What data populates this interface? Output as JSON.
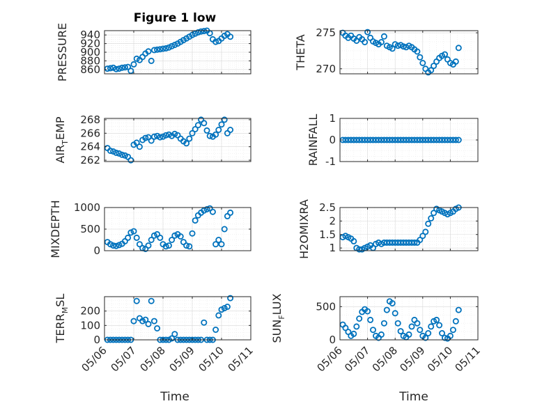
{
  "figure": {
    "title": "Figure 1 low",
    "marker_color": "#0072BD",
    "xlabel": "Time",
    "x_tick_labels": [
      "05/06",
      "05/07",
      "05/08",
      "05/09",
      "05/10",
      "05/11"
    ]
  },
  "chart_data": [
    {
      "type": "scatter",
      "name": "pressure",
      "ylabel": "PRESSURE",
      "title": "Figure 1 low",
      "xlim": [
        0,
        5
      ],
      "ylim": [
        850,
        950
      ],
      "yticks": [
        860,
        880,
        900,
        920,
        940
      ],
      "ytick_labels": [
        "860",
        "880",
        "900",
        "920",
        "940"
      ],
      "x": [
        0.1,
        0.2,
        0.3,
        0.4,
        0.5,
        0.6,
        0.7,
        0.8,
        0.9,
        1.0,
        1.1,
        1.2,
        1.3,
        1.4,
        1.5,
        1.6,
        1.7,
        1.8,
        1.9,
        2.0,
        2.1,
        2.2,
        2.3,
        2.4,
        2.5,
        2.6,
        2.7,
        2.8,
        2.9,
        3.0,
        3.1,
        3.2,
        3.3,
        3.4,
        3.5,
        3.6,
        3.7,
        3.8,
        3.9,
        4.0,
        4.1,
        4.2,
        4.3
      ],
      "y": [
        862,
        863,
        864,
        861,
        862,
        864,
        865,
        866,
        857,
        872,
        885,
        882,
        889,
        897,
        902,
        880,
        905,
        906,
        907,
        908,
        909,
        911,
        914,
        917,
        920,
        924,
        928,
        932,
        936,
        940,
        943,
        946,
        948,
        949,
        950,
        944,
        930,
        924,
        926,
        932,
        938,
        942,
        936
      ]
    },
    {
      "type": "scatter",
      "name": "theta",
      "ylabel": "THETA",
      "xlim": [
        0,
        5
      ],
      "ylim": [
        269.3,
        275.3
      ],
      "yticks": [
        270,
        275
      ],
      "ytick_labels": [
        "270",
        "275"
      ],
      "x": [
        0.1,
        0.2,
        0.3,
        0.4,
        0.5,
        0.6,
        0.7,
        0.8,
        0.9,
        1.0,
        1.1,
        1.2,
        1.3,
        1.4,
        1.5,
        1.6,
        1.7,
        1.8,
        1.9,
        2.0,
        2.1,
        2.2,
        2.3,
        2.4,
        2.5,
        2.6,
        2.7,
        2.8,
        2.9,
        3.0,
        3.1,
        3.2,
        3.3,
        3.4,
        3.5,
        3.6,
        3.7,
        3.8,
        3.9,
        4.0,
        4.1,
        4.2,
        4.3
      ],
      "y": [
        275.0,
        274.6,
        274.3,
        274.6,
        274.2,
        273.9,
        274.4,
        274.1,
        273.7,
        275.1,
        274.3,
        273.8,
        273.6,
        273.4,
        273.7,
        274.5,
        273.2,
        273.0,
        272.8,
        273.4,
        273.2,
        273.3,
        273.1,
        273.0,
        273.2,
        273.0,
        272.7,
        272.4,
        271.6,
        270.8,
        270.0,
        269.5,
        269.8,
        270.4,
        271.0,
        271.5,
        271.8,
        272.0,
        271.3,
        270.8,
        270.6,
        271.0,
        272.9
      ]
    },
    {
      "type": "scatter",
      "name": "air-temp",
      "ylabel": "AIR_TEMP",
      "xlim": [
        0,
        5
      ],
      "ylim": [
        261.8,
        268.2
      ],
      "yticks": [
        262,
        264,
        266,
        268
      ],
      "ytick_labels": [
        "262",
        "264",
        "266",
        "268"
      ],
      "x": [
        0.1,
        0.2,
        0.3,
        0.4,
        0.5,
        0.6,
        0.7,
        0.8,
        0.9,
        1.0,
        1.1,
        1.2,
        1.3,
        1.4,
        1.5,
        1.6,
        1.7,
        1.8,
        1.9,
        2.0,
        2.1,
        2.2,
        2.3,
        2.4,
        2.5,
        2.6,
        2.7,
        2.8,
        2.9,
        3.0,
        3.1,
        3.2,
        3.3,
        3.4,
        3.5,
        3.6,
        3.7,
        3.8,
        3.9,
        4.0,
        4.1,
        4.2,
        4.3
      ],
      "y": [
        263.8,
        263.4,
        263.3,
        263.1,
        263.0,
        262.8,
        262.7,
        262.5,
        262.0,
        264.3,
        264.6,
        264.0,
        265.0,
        265.3,
        265.4,
        264.9,
        265.5,
        265.6,
        265.4,
        265.5,
        265.7,
        265.8,
        265.6,
        265.9,
        265.7,
        265.2,
        264.8,
        264.5,
        265.2,
        266.0,
        266.6,
        267.2,
        268.0,
        267.5,
        266.4,
        265.6,
        265.5,
        265.8,
        266.5,
        267.3,
        268.0,
        266.0,
        266.5
      ]
    },
    {
      "type": "scatter",
      "name": "rainfall",
      "ylabel": "RAINFALL",
      "xlim": [
        0,
        5
      ],
      "ylim": [
        -1,
        1
      ],
      "yticks": [
        -1,
        0,
        1
      ],
      "ytick_labels": [
        "-1",
        "0",
        "1"
      ],
      "x": [
        0.1,
        0.2,
        0.3,
        0.4,
        0.5,
        0.6,
        0.7,
        0.8,
        0.9,
        1.0,
        1.1,
        1.2,
        1.3,
        1.4,
        1.5,
        1.6,
        1.7,
        1.8,
        1.9,
        2.0,
        2.1,
        2.2,
        2.3,
        2.4,
        2.5,
        2.6,
        2.7,
        2.8,
        2.9,
        3.0,
        3.1,
        3.2,
        3.3,
        3.4,
        3.5,
        3.6,
        3.7,
        3.8,
        3.9,
        4.0,
        4.1,
        4.2,
        4.3
      ],
      "y": [
        0,
        0,
        0,
        0,
        0,
        0,
        0,
        0,
        0,
        0,
        0,
        0,
        0,
        0,
        0,
        0,
        0,
        0,
        0,
        0,
        0,
        0,
        0,
        0,
        0,
        0,
        0,
        0,
        0,
        0,
        0,
        0,
        0,
        0,
        0,
        0,
        0,
        0,
        0,
        0,
        0,
        0,
        0
      ]
    },
    {
      "type": "scatter",
      "name": "mixdepth",
      "ylabel": "MIXDEPTH",
      "xlim": [
        0,
        5
      ],
      "ylim": [
        0,
        1000
      ],
      "yticks": [
        0,
        500,
        1000
      ],
      "ytick_labels": [
        "0",
        "500",
        "1000"
      ],
      "x": [
        0.1,
        0.2,
        0.3,
        0.4,
        0.5,
        0.6,
        0.7,
        0.8,
        0.9,
        1.0,
        1.1,
        1.2,
        1.3,
        1.4,
        1.5,
        1.6,
        1.7,
        1.8,
        1.9,
        2.0,
        2.1,
        2.2,
        2.3,
        2.4,
        2.5,
        2.6,
        2.7,
        2.8,
        2.9,
        3.0,
        3.1,
        3.2,
        3.3,
        3.4,
        3.5,
        3.6,
        3.7,
        3.8,
        3.9,
        4.0,
        4.1,
        4.2,
        4.3
      ],
      "y": [
        200,
        150,
        120,
        110,
        130,
        160,
        220,
        300,
        420,
        450,
        300,
        150,
        60,
        40,
        120,
        250,
        350,
        380,
        300,
        150,
        100,
        120,
        250,
        350,
        380,
        330,
        200,
        120,
        100,
        400,
        700,
        820,
        880,
        930,
        960,
        980,
        900,
        150,
        250,
        150,
        500,
        800,
        880
      ]
    },
    {
      "type": "scatter",
      "name": "h2omixra",
      "ylabel": "H2OMIXRA",
      "xlim": [
        0,
        5
      ],
      "ylim": [
        0.9,
        2.5
      ],
      "yticks": [
        1,
        1.5,
        2,
        2.5
      ],
      "ytick_labels": [
        "1",
        "1.5",
        "2",
        "2.5"
      ],
      "x": [
        0.1,
        0.2,
        0.3,
        0.4,
        0.5,
        0.6,
        0.7,
        0.8,
        0.9,
        1.0,
        1.1,
        1.2,
        1.3,
        1.4,
        1.5,
        1.6,
        1.7,
        1.8,
        1.9,
        2.0,
        2.1,
        2.2,
        2.3,
        2.4,
        2.5,
        2.6,
        2.7,
        2.8,
        2.9,
        3.0,
        3.1,
        3.2,
        3.3,
        3.4,
        3.5,
        3.6,
        3.7,
        3.8,
        3.9,
        4.0,
        4.1,
        4.2,
        4.3
      ],
      "y": [
        1.4,
        1.45,
        1.4,
        1.35,
        1.25,
        1.0,
        0.95,
        0.95,
        1.0,
        1.05,
        1.1,
        1.0,
        1.15,
        1.2,
        1.15,
        1.2,
        1.2,
        1.2,
        1.2,
        1.2,
        1.2,
        1.2,
        1.2,
        1.2,
        1.2,
        1.2,
        1.2,
        1.2,
        1.3,
        1.45,
        1.6,
        1.9,
        2.1,
        2.3,
        2.45,
        2.4,
        2.35,
        2.3,
        2.25,
        2.3,
        2.35,
        2.45,
        2.5
      ]
    },
    {
      "type": "scatter",
      "name": "terr-msl",
      "ylabel": "TERR_MSL",
      "xlim": [
        0,
        5
      ],
      "ylim": [
        0,
        300
      ],
      "yticks": [
        0,
        100,
        200
      ],
      "ytick_labels": [
        "0",
        "100",
        "200"
      ],
      "x": [
        0.1,
        0.2,
        0.3,
        0.4,
        0.5,
        0.6,
        0.7,
        0.8,
        0.9,
        1.0,
        1.1,
        1.2,
        1.3,
        1.4,
        1.5,
        1.6,
        1.7,
        1.8,
        1.9,
        2.0,
        2.1,
        2.2,
        2.3,
        2.4,
        2.5,
        2.6,
        2.7,
        2.8,
        2.9,
        3.0,
        3.1,
        3.2,
        3.3,
        3.4,
        3.5,
        3.6,
        3.7,
        3.8,
        3.9,
        4.0,
        4.1,
        4.2,
        4.3
      ],
      "y": [
        0,
        0,
        0,
        0,
        0,
        0,
        0,
        0,
        0,
        130,
        270,
        150,
        130,
        140,
        110,
        270,
        130,
        80,
        0,
        0,
        0,
        0,
        10,
        40,
        0,
        0,
        0,
        0,
        0,
        0,
        0,
        0,
        0,
        120,
        0,
        0,
        0,
        70,
        170,
        210,
        220,
        230,
        290
      ]
    },
    {
      "type": "scatter",
      "name": "sun-flux",
      "ylabel": "SUN_FLUX",
      "xlim": [
        0,
        5
      ],
      "ylim": [
        0,
        650
      ],
      "yticks": [
        0,
        500
      ],
      "ytick_labels": [
        "0",
        "500"
      ],
      "x": [
        0.1,
        0.2,
        0.3,
        0.4,
        0.5,
        0.6,
        0.7,
        0.8,
        0.9,
        1.0,
        1.1,
        1.2,
        1.3,
        1.4,
        1.5,
        1.6,
        1.7,
        1.8,
        1.9,
        2.0,
        2.1,
        2.2,
        2.3,
        2.4,
        2.5,
        2.6,
        2.7,
        2.8,
        2.9,
        3.0,
        3.1,
        3.2,
        3.3,
        3.4,
        3.5,
        3.6,
        3.7,
        3.8,
        3.9,
        4.0,
        4.1,
        4.2,
        4.3
      ],
      "y": [
        230,
        180,
        120,
        60,
        90,
        200,
        320,
        420,
        460,
        430,
        300,
        150,
        60,
        30,
        80,
        250,
        450,
        580,
        550,
        400,
        250,
        130,
        60,
        40,
        80,
        200,
        300,
        250,
        150,
        60,
        30,
        100,
        200,
        280,
        300,
        220,
        100,
        30,
        20,
        60,
        150,
        280,
        450
      ]
    }
  ]
}
